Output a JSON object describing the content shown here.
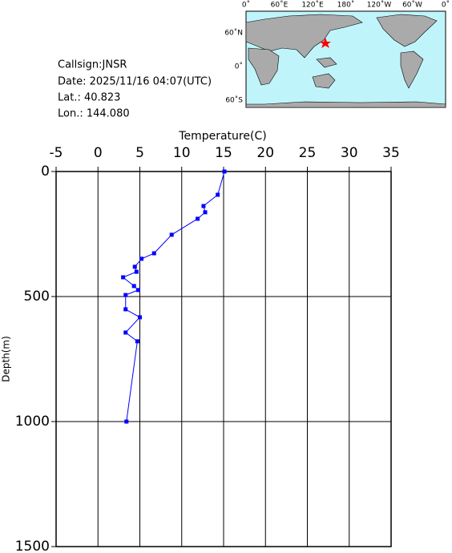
{
  "info": {
    "callsign": "Callsign:JNSR",
    "date": "Date:  2025/11/16 04:07(UTC)",
    "lat": "Lat.:  40.823",
    "lon": "Lon.:  144.080"
  },
  "map": {
    "lon_labels": [
      "0˚",
      "60˚E",
      "120˚E",
      "180˚",
      "120˚W",
      "60˚W",
      "0˚"
    ],
    "lat_labels": [
      "60˚N",
      "0˚",
      "60˚S"
    ]
  },
  "chart_data": {
    "type": "profile",
    "x_label": "Temperature(C)",
    "y_label": "Depth(m)",
    "x": [
      15.1,
      14.3,
      12.6,
      12.8,
      11.9,
      8.8,
      6.7,
      5.2,
      4.4,
      4.6,
      3.0,
      4.3,
      4.8,
      3.3,
      3.3,
      5.0,
      3.3,
      4.7,
      3.4
    ],
    "y": [
      0,
      93,
      138,
      163,
      189,
      253,
      327,
      349,
      381,
      401,
      423,
      458,
      474,
      494,
      551,
      583,
      644,
      679,
      1000
    ],
    "color": "#0000ff",
    "xlim": [
      -5,
      35
    ],
    "xticks": [
      -5,
      0,
      5,
      10,
      15,
      20,
      25,
      30,
      35
    ],
    "ylim": [
      0,
      1500
    ],
    "yticks": [
      0,
      500,
      1000,
      1500
    ],
    "grid": true
  }
}
